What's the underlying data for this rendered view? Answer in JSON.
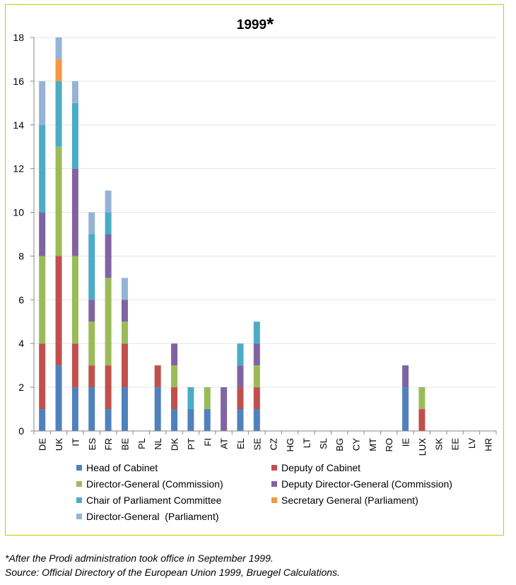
{
  "title": "1999",
  "title_mark": "*",
  "footnotes": {
    "note": "*After the Prodi administration took office in September 1999.",
    "source": "Source: Official Directory of the European Union 1999, Bruegel Calculations."
  },
  "chart_data": {
    "type": "bar",
    "stacked": true,
    "title": "1999*",
    "ylim": [
      0,
      18
    ],
    "yticks": [
      0,
      2,
      4,
      6,
      8,
      10,
      12,
      14,
      16,
      18
    ],
    "grid": true,
    "legend_position": "bottom",
    "categories": [
      "DE",
      "UK",
      "IT",
      "ES",
      "FR",
      "BE",
      "PL",
      "NL",
      "DK",
      "PT",
      "FI",
      "AT",
      "EL",
      "SE",
      "CZ",
      "HG",
      "LT",
      "SL",
      "BG",
      "CY",
      "MT",
      "RO",
      "IE",
      "LUX",
      "SK",
      "EE",
      "LV",
      "HR"
    ],
    "series": [
      {
        "name": "Head of Cabinet",
        "color": "#4f81bd",
        "values": [
          1,
          3,
          2,
          2,
          1,
          2,
          0,
          2,
          1,
          1,
          1,
          0,
          1,
          1,
          0,
          0,
          0,
          0,
          0,
          0,
          0,
          0,
          2,
          0,
          0,
          0,
          0,
          0
        ]
      },
      {
        "name": "Deputy of Cabinet",
        "color": "#c0504d",
        "values": [
          3,
          5,
          2,
          1,
          2,
          2,
          0,
          1,
          1,
          0,
          0,
          0,
          1,
          1,
          0,
          0,
          0,
          0,
          0,
          0,
          0,
          0,
          0,
          1,
          0,
          0,
          0,
          0
        ]
      },
      {
        "name": "Director-General (Commission)",
        "color": "#9bbb59",
        "values": [
          4,
          5,
          4,
          2,
          4,
          1,
          0,
          0,
          1,
          0,
          1,
          0,
          0,
          1,
          0,
          0,
          0,
          0,
          0,
          0,
          0,
          0,
          0,
          1,
          0,
          0,
          0,
          0
        ]
      },
      {
        "name": "Deputy Director-General (Commission)",
        "color": "#8064a2",
        "values": [
          2,
          0,
          4,
          1,
          2,
          1,
          0,
          0,
          1,
          0,
          0,
          2,
          1,
          1,
          0,
          0,
          0,
          0,
          0,
          0,
          0,
          0,
          1,
          0,
          0,
          0,
          0,
          0
        ]
      },
      {
        "name": "Chair of Parliament Committee",
        "color": "#4bacc6",
        "values": [
          4,
          3,
          3,
          3,
          1,
          0,
          0,
          0,
          0,
          1,
          0,
          0,
          1,
          1,
          0,
          0,
          0,
          0,
          0,
          0,
          0,
          0,
          0,
          0,
          0,
          0,
          0,
          0
        ]
      },
      {
        "name": "Secretary General (Parliament)",
        "color": "#f79646",
        "values": [
          0,
          1,
          0,
          0,
          0,
          0,
          0,
          0,
          0,
          0,
          0,
          0,
          0,
          0,
          0,
          0,
          0,
          0,
          0,
          0,
          0,
          0,
          0,
          0,
          0,
          0,
          0,
          0
        ]
      },
      {
        "name": "Director-General  (Parliament)",
        "color": "#95b3d7",
        "values": [
          2,
          1,
          1,
          1,
          1,
          1,
          0,
          0,
          0,
          0,
          0,
          0,
          0,
          0,
          0,
          0,
          0,
          0,
          0,
          0,
          0,
          0,
          0,
          0,
          0,
          0,
          0,
          0
        ]
      }
    ]
  }
}
